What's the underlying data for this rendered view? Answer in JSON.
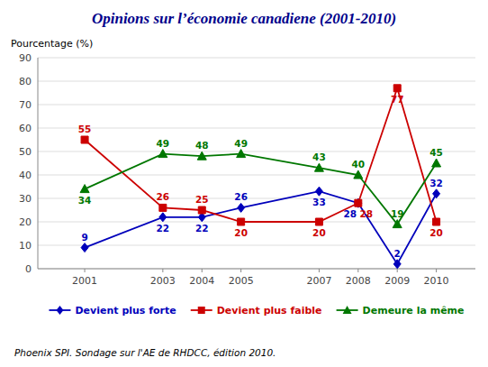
{
  "chart_data": {
    "type": "line",
    "title": "Opinions sur l’économie canadiene (2001-2010)",
    "ylabel": "Pourcentage (%)",
    "footer": "Phoenix SPI. Sondage sur l'AE de RHDCC, édition 2010.",
    "x": [
      2001,
      2003,
      2004,
      2005,
      2007,
      2008,
      2009,
      2010
    ],
    "series": [
      {
        "name": "Devient plus forte",
        "color": "#0000BB",
        "marker": "diamond",
        "values": [
          9,
          22,
          22,
          26,
          33,
          28,
          2,
          32
        ]
      },
      {
        "name": "Devient plus faible",
        "color": "#CC0000",
        "marker": "square",
        "values": [
          55,
          26,
          25,
          20,
          20,
          28,
          77,
          20
        ]
      },
      {
        "name": "Demeure la même",
        "color": "#007700",
        "marker": "triangle",
        "values": [
          34,
          49,
          48,
          49,
          43,
          40,
          19,
          45
        ]
      }
    ],
    "xlim": [
      1999.8,
      2011.0
    ],
    "xticks": [
      2001,
      2003,
      2004,
      2005,
      2007,
      2008,
      2009,
      2010
    ],
    "ylim": [
      0,
      90
    ],
    "yticks": [
      0,
      10,
      20,
      30,
      40,
      50,
      60,
      70,
      80,
      90
    ],
    "grid": true,
    "legend": "bottom",
    "data_labels": true
  }
}
